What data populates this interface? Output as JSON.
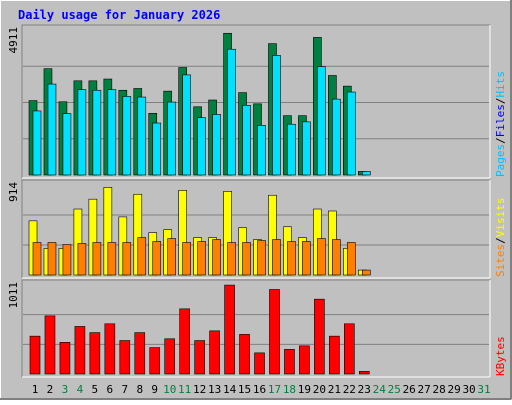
{
  "title": "Daily usage for January 2026",
  "colors": {
    "background": "#c0c0c0",
    "title": "#0000ff",
    "hits": "#00c0ff",
    "files": "#0000ff",
    "pages": "#00c0ff",
    "pages_bar": "#008040",
    "files_bar": "#00e0ff",
    "visits": "#ffff00",
    "sites": "#ff8000",
    "kbytes": "#ff0000",
    "grid": "#808080",
    "weekday_day": "#000000",
    "weekend_day": "#008040"
  },
  "chart_data": [
    {
      "type": "bar",
      "name": "hits-files-pages",
      "ymax_label": "4911",
      "ymax": 4911,
      "legend": [
        "Pages",
        "/",
        "Files",
        "/",
        "Hits"
      ],
      "categories": [
        "1",
        "2",
        "3",
        "4",
        "5",
        "6",
        "7",
        "8",
        "9",
        "10",
        "11",
        "12",
        "13",
        "14",
        "15",
        "16",
        "17",
        "18",
        "19",
        "20",
        "21",
        "22",
        "23",
        "24",
        "25",
        "26",
        "27",
        "28",
        "29",
        "30",
        "31"
      ],
      "series": [
        {
          "name": "Pages",
          "values": [
            2520,
            3600,
            2480,
            3190,
            3190,
            3250,
            2870,
            2930,
            2090,
            2840,
            3640,
            2310,
            2540,
            4800,
            2790,
            2410,
            4450,
            2010,
            2010,
            4660,
            3370,
            3010,
            120,
            0,
            0,
            0,
            0,
            0,
            0,
            0,
            0
          ]
        },
        {
          "name": "Files",
          "values": [
            2170,
            3080,
            2080,
            2890,
            2870,
            2890,
            2660,
            2640,
            1760,
            2470,
            3390,
            1940,
            2050,
            4260,
            2360,
            1680,
            4050,
            1720,
            1800,
            3670,
            2570,
            2810,
            120,
            0,
            0,
            0,
            0,
            0,
            0,
            0,
            0
          ]
        }
      ]
    },
    {
      "type": "bar",
      "name": "visits-sites",
      "ymax_label": "914",
      "ymax": 914,
      "legend": [
        "Sites",
        "/",
        "Visits"
      ],
      "categories": [
        "1",
        "2",
        "3",
        "4",
        "5",
        "6",
        "7",
        "8",
        "9",
        "10",
        "11",
        "12",
        "13",
        "14",
        "15",
        "16",
        "17",
        "18",
        "19",
        "20",
        "21",
        "22",
        "23",
        "24",
        "25",
        "26",
        "27",
        "28",
        "29",
        "30",
        "31"
      ],
      "series": [
        {
          "name": "Visits",
          "values": [
            550,
            270,
            270,
            670,
            770,
            890,
            590,
            820,
            430,
            460,
            860,
            380,
            380,
            850,
            480,
            360,
            810,
            490,
            380,
            670,
            650,
            270,
            50,
            0,
            0,
            0,
            0,
            0,
            0,
            0,
            0
          ]
        },
        {
          "name": "Sites",
          "values": [
            330,
            330,
            310,
            320,
            330,
            330,
            330,
            380,
            340,
            370,
            330,
            340,
            360,
            330,
            330,
            350,
            360,
            340,
            340,
            370,
            360,
            330,
            50,
            0,
            0,
            0,
            0,
            0,
            0,
            0,
            0
          ]
        }
      ]
    },
    {
      "type": "bar",
      "name": "kbytes",
      "ymax_label": "1011",
      "ymax": 1011,
      "legend": [
        "KBytes"
      ],
      "categories": [
        "1",
        "2",
        "3",
        "4",
        "5",
        "6",
        "7",
        "8",
        "9",
        "10",
        "11",
        "12",
        "13",
        "14",
        "15",
        "16",
        "17",
        "18",
        "19",
        "20",
        "21",
        "22",
        "23",
        "24",
        "25",
        "26",
        "27",
        "28",
        "29",
        "30",
        "31"
      ],
      "series": [
        {
          "name": "KBytes",
          "values": [
            430,
            660,
            360,
            540,
            470,
            570,
            380,
            470,
            300,
            400,
            740,
            380,
            490,
            1010,
            450,
            240,
            960,
            280,
            320,
            850,
            430,
            570,
            30,
            0,
            0,
            0,
            0,
            0,
            0,
            0,
            0
          ]
        }
      ]
    }
  ],
  "x_axis": {
    "days": [
      "1",
      "2",
      "3",
      "4",
      "5",
      "6",
      "7",
      "8",
      "9",
      "10",
      "11",
      "12",
      "13",
      "14",
      "15",
      "16",
      "17",
      "18",
      "19",
      "20",
      "21",
      "22",
      "23",
      "24",
      "25",
      "26",
      "27",
      "28",
      "29",
      "30",
      "31"
    ],
    "weekend": [
      "3",
      "4",
      "10",
      "11",
      "17",
      "18",
      "24",
      "25",
      "31"
    ]
  }
}
